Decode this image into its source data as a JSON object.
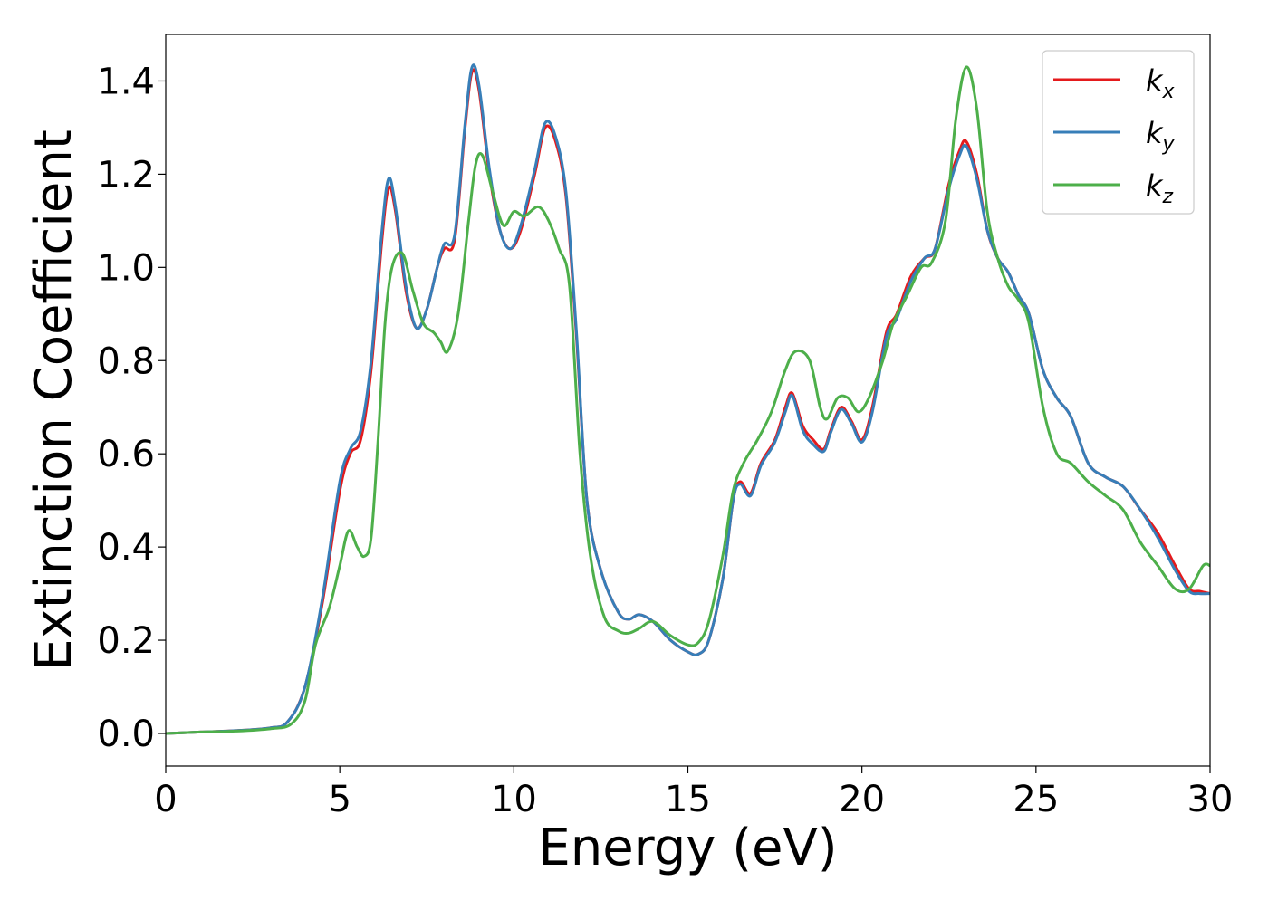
{
  "chart_data": {
    "type": "line",
    "title": "",
    "xlabel": "Energy (eV)",
    "ylabel": "Extinction Coefficient",
    "xlim": [
      0,
      30
    ],
    "ylim": [
      -0.07,
      1.5
    ],
    "xticks": [
      0,
      5,
      10,
      15,
      20,
      25,
      30
    ],
    "xtick_labels": [
      "0",
      "5",
      "10",
      "15",
      "20",
      "25",
      "30"
    ],
    "yticks": [
      0.0,
      0.2,
      0.4,
      0.6,
      0.8,
      1.0,
      1.2,
      1.4
    ],
    "ytick_labels": [
      "0.0",
      "0.2",
      "0.4",
      "0.6",
      "0.8",
      "1.0",
      "1.2",
      "1.4"
    ],
    "grid": false,
    "legend_position": "top-right",
    "series": [
      {
        "name": "k_x",
        "legend_base": "k",
        "legend_sub": "x",
        "color": "#e41a1c",
        "points": [
          [
            0,
            0
          ],
          [
            1,
            0.003
          ],
          [
            2,
            0.006
          ],
          [
            3,
            0.012
          ],
          [
            3.5,
            0.025
          ],
          [
            4,
            0.1
          ],
          [
            4.5,
            0.28
          ],
          [
            5,
            0.52
          ],
          [
            5.3,
            0.6
          ],
          [
            5.6,
            0.63
          ],
          [
            5.9,
            0.78
          ],
          [
            6.2,
            1.05
          ],
          [
            6.4,
            1.17
          ],
          [
            6.6,
            1.12
          ],
          [
            6.9,
            0.95
          ],
          [
            7.2,
            0.87
          ],
          [
            7.5,
            0.91
          ],
          [
            7.8,
            1.0
          ],
          [
            8.0,
            1.04
          ],
          [
            8.3,
            1.06
          ],
          [
            8.6,
            1.3
          ],
          [
            8.8,
            1.42
          ],
          [
            9.0,
            1.38
          ],
          [
            9.3,
            1.2
          ],
          [
            9.6,
            1.08
          ],
          [
            9.9,
            1.04
          ],
          [
            10.2,
            1.08
          ],
          [
            10.6,
            1.2
          ],
          [
            10.9,
            1.3
          ],
          [
            11.2,
            1.27
          ],
          [
            11.5,
            1.15
          ],
          [
            11.8,
            0.85
          ],
          [
            12.1,
            0.5
          ],
          [
            12.5,
            0.35
          ],
          [
            13.0,
            0.26
          ],
          [
            13.3,
            0.245
          ],
          [
            13.6,
            0.255
          ],
          [
            14.0,
            0.24
          ],
          [
            14.5,
            0.2
          ],
          [
            15.0,
            0.175
          ],
          [
            15.3,
            0.17
          ],
          [
            15.6,
            0.2
          ],
          [
            16.0,
            0.33
          ],
          [
            16.3,
            0.5
          ],
          [
            16.5,
            0.54
          ],
          [
            16.8,
            0.515
          ],
          [
            17.1,
            0.58
          ],
          [
            17.5,
            0.63
          ],
          [
            17.8,
            0.7
          ],
          [
            18.0,
            0.73
          ],
          [
            18.3,
            0.66
          ],
          [
            18.6,
            0.63
          ],
          [
            18.9,
            0.61
          ],
          [
            19.1,
            0.65
          ],
          [
            19.4,
            0.7
          ],
          [
            19.7,
            0.67
          ],
          [
            20.0,
            0.63
          ],
          [
            20.3,
            0.7
          ],
          [
            20.7,
            0.86
          ],
          [
            21.0,
            0.9
          ],
          [
            21.4,
            0.98
          ],
          [
            21.8,
            1.02
          ],
          [
            22.1,
            1.04
          ],
          [
            22.5,
            1.18
          ],
          [
            22.8,
            1.25
          ],
          [
            23.0,
            1.27
          ],
          [
            23.3,
            1.2
          ],
          [
            23.6,
            1.08
          ],
          [
            23.9,
            1.02
          ],
          [
            24.2,
            0.99
          ],
          [
            24.5,
            0.94
          ],
          [
            24.8,
            0.9
          ],
          [
            25.2,
            0.78
          ],
          [
            25.6,
            0.72
          ],
          [
            26.0,
            0.68
          ],
          [
            26.5,
            0.58
          ],
          [
            27.0,
            0.55
          ],
          [
            27.5,
            0.53
          ],
          [
            28.0,
            0.48
          ],
          [
            28.5,
            0.43
          ],
          [
            29.0,
            0.36
          ],
          [
            29.4,
            0.31
          ],
          [
            29.7,
            0.305
          ],
          [
            30.0,
            0.3
          ]
        ]
      },
      {
        "name": "k_y",
        "legend_base": "k",
        "legend_sub": "y",
        "color": "#377eb8",
        "points": [
          [
            0,
            0
          ],
          [
            1,
            0.003
          ],
          [
            2,
            0.006
          ],
          [
            3,
            0.012
          ],
          [
            3.5,
            0.025
          ],
          [
            4,
            0.1
          ],
          [
            4.5,
            0.29
          ],
          [
            5,
            0.54
          ],
          [
            5.3,
            0.61
          ],
          [
            5.6,
            0.65
          ],
          [
            5.9,
            0.8
          ],
          [
            6.2,
            1.07
          ],
          [
            6.4,
            1.19
          ],
          [
            6.6,
            1.13
          ],
          [
            6.9,
            0.96
          ],
          [
            7.2,
            0.87
          ],
          [
            7.5,
            0.91
          ],
          [
            7.8,
            1.0
          ],
          [
            8.0,
            1.05
          ],
          [
            8.3,
            1.07
          ],
          [
            8.6,
            1.31
          ],
          [
            8.8,
            1.43
          ],
          [
            9.0,
            1.39
          ],
          [
            9.3,
            1.21
          ],
          [
            9.6,
            1.08
          ],
          [
            9.9,
            1.04
          ],
          [
            10.2,
            1.09
          ],
          [
            10.6,
            1.21
          ],
          [
            10.9,
            1.31
          ],
          [
            11.2,
            1.28
          ],
          [
            11.5,
            1.16
          ],
          [
            11.8,
            0.86
          ],
          [
            12.1,
            0.5
          ],
          [
            12.5,
            0.35
          ],
          [
            13.0,
            0.26
          ],
          [
            13.3,
            0.245
          ],
          [
            13.6,
            0.255
          ],
          [
            14.0,
            0.24
          ],
          [
            14.5,
            0.2
          ],
          [
            15.0,
            0.175
          ],
          [
            15.3,
            0.17
          ],
          [
            15.6,
            0.2
          ],
          [
            16.0,
            0.33
          ],
          [
            16.3,
            0.5
          ],
          [
            16.5,
            0.535
          ],
          [
            16.8,
            0.51
          ],
          [
            17.1,
            0.575
          ],
          [
            17.5,
            0.625
          ],
          [
            17.8,
            0.69
          ],
          [
            18.0,
            0.725
          ],
          [
            18.3,
            0.65
          ],
          [
            18.6,
            0.62
          ],
          [
            18.9,
            0.605
          ],
          [
            19.1,
            0.645
          ],
          [
            19.4,
            0.695
          ],
          [
            19.7,
            0.665
          ],
          [
            20.0,
            0.625
          ],
          [
            20.3,
            0.69
          ],
          [
            20.7,
            0.85
          ],
          [
            21.0,
            0.89
          ],
          [
            21.4,
            0.97
          ],
          [
            21.8,
            1.02
          ],
          [
            22.1,
            1.04
          ],
          [
            22.5,
            1.17
          ],
          [
            22.8,
            1.24
          ],
          [
            23.0,
            1.26
          ],
          [
            23.3,
            1.19
          ],
          [
            23.6,
            1.08
          ],
          [
            23.9,
            1.02
          ],
          [
            24.2,
            0.99
          ],
          [
            24.5,
            0.94
          ],
          [
            24.8,
            0.9
          ],
          [
            25.2,
            0.78
          ],
          [
            25.6,
            0.72
          ],
          [
            26.0,
            0.68
          ],
          [
            26.5,
            0.58
          ],
          [
            27.0,
            0.55
          ],
          [
            27.5,
            0.53
          ],
          [
            28.0,
            0.48
          ],
          [
            28.5,
            0.42
          ],
          [
            29.0,
            0.35
          ],
          [
            29.4,
            0.305
          ],
          [
            29.7,
            0.3
          ],
          [
            30.0,
            0.3
          ]
        ]
      },
      {
        "name": "k_z",
        "legend_base": "k",
        "legend_sub": "z",
        "color": "#4daf4a",
        "points": [
          [
            0,
            0
          ],
          [
            1,
            0.003
          ],
          [
            2,
            0.005
          ],
          [
            3,
            0.01
          ],
          [
            3.6,
            0.02
          ],
          [
            4.0,
            0.07
          ],
          [
            4.3,
            0.19
          ],
          [
            4.7,
            0.27
          ],
          [
            5.0,
            0.36
          ],
          [
            5.25,
            0.435
          ],
          [
            5.5,
            0.4
          ],
          [
            5.7,
            0.38
          ],
          [
            5.9,
            0.42
          ],
          [
            6.1,
            0.63
          ],
          [
            6.3,
            0.88
          ],
          [
            6.5,
            1.0
          ],
          [
            6.8,
            1.03
          ],
          [
            7.1,
            0.95
          ],
          [
            7.4,
            0.88
          ],
          [
            7.7,
            0.86
          ],
          [
            7.9,
            0.84
          ],
          [
            8.1,
            0.82
          ],
          [
            8.4,
            0.9
          ],
          [
            8.7,
            1.1
          ],
          [
            8.9,
            1.22
          ],
          [
            9.1,
            1.24
          ],
          [
            9.4,
            1.16
          ],
          [
            9.7,
            1.09
          ],
          [
            10.0,
            1.12
          ],
          [
            10.3,
            1.11
          ],
          [
            10.7,
            1.13
          ],
          [
            11.0,
            1.1
          ],
          [
            11.3,
            1.04
          ],
          [
            11.6,
            0.96
          ],
          [
            11.9,
            0.6
          ],
          [
            12.2,
            0.38
          ],
          [
            12.6,
            0.25
          ],
          [
            13.0,
            0.22
          ],
          [
            13.3,
            0.215
          ],
          [
            13.6,
            0.225
          ],
          [
            14.0,
            0.24
          ],
          [
            14.5,
            0.21
          ],
          [
            15.0,
            0.19
          ],
          [
            15.3,
            0.195
          ],
          [
            15.6,
            0.24
          ],
          [
            16.0,
            0.38
          ],
          [
            16.3,
            0.52
          ],
          [
            16.6,
            0.58
          ],
          [
            17.0,
            0.63
          ],
          [
            17.4,
            0.69
          ],
          [
            17.8,
            0.78
          ],
          [
            18.1,
            0.82
          ],
          [
            18.5,
            0.8
          ],
          [
            18.8,
            0.7
          ],
          [
            19.0,
            0.675
          ],
          [
            19.3,
            0.72
          ],
          [
            19.6,
            0.72
          ],
          [
            19.9,
            0.69
          ],
          [
            20.2,
            0.72
          ],
          [
            20.6,
            0.8
          ],
          [
            20.9,
            0.88
          ],
          [
            21.3,
            0.94
          ],
          [
            21.7,
            1.0
          ],
          [
            22.0,
            1.01
          ],
          [
            22.4,
            1.1
          ],
          [
            22.7,
            1.32
          ],
          [
            23.0,
            1.43
          ],
          [
            23.3,
            1.34
          ],
          [
            23.6,
            1.12
          ],
          [
            23.9,
            1.02
          ],
          [
            24.2,
            0.96
          ],
          [
            24.5,
            0.93
          ],
          [
            24.8,
            0.88
          ],
          [
            25.2,
            0.7
          ],
          [
            25.6,
            0.6
          ],
          [
            26.0,
            0.58
          ],
          [
            26.5,
            0.54
          ],
          [
            27.0,
            0.51
          ],
          [
            27.5,
            0.48
          ],
          [
            28.0,
            0.41
          ],
          [
            28.5,
            0.36
          ],
          [
            29.0,
            0.31
          ],
          [
            29.4,
            0.31
          ],
          [
            29.8,
            0.36
          ],
          [
            30.0,
            0.36
          ]
        ]
      }
    ]
  }
}
